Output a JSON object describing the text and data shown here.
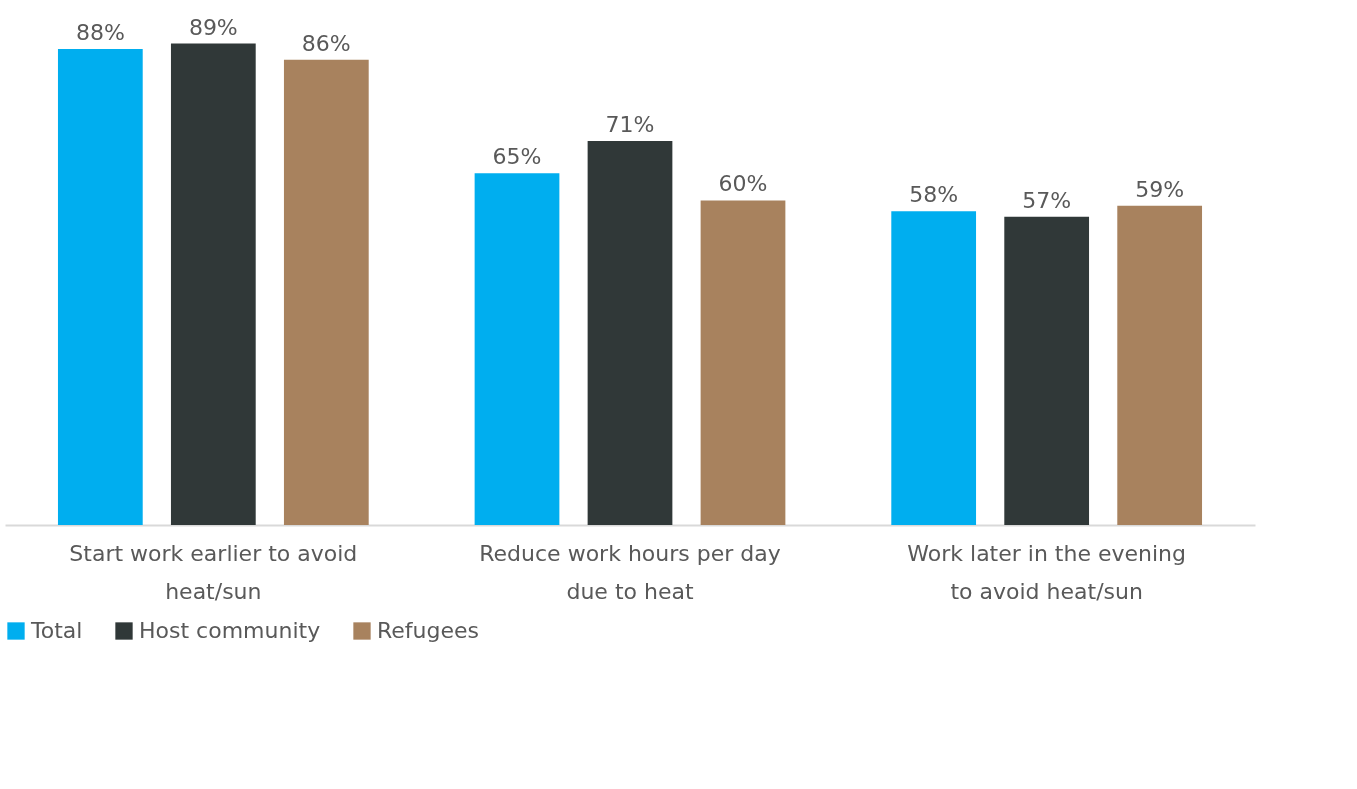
{
  "chart_data": {
    "type": "bar",
    "categories": [
      "Start work earlier to avoid heat/sun",
      "Reduce work hours per day due to heat",
      "Work later in the evening to avoid heat/sun"
    ],
    "series": [
      {
        "name": "Total",
        "color": "#00aeef",
        "values": [
          88,
          65,
          58
        ],
        "value_labels": [
          "88%",
          "65%",
          "58%"
        ]
      },
      {
        "name": "Host community",
        "color": "#303838",
        "values": [
          89,
          71,
          57
        ],
        "value_labels": [
          "89%",
          "71%",
          "57%"
        ]
      },
      {
        "name": "Refugees",
        "color": "#a8825e",
        "values": [
          86,
          60,
          59
        ],
        "value_labels": [
          "86%",
          "60%",
          "59%"
        ]
      }
    ],
    "legend": "bottom",
    "grid": false
  }
}
